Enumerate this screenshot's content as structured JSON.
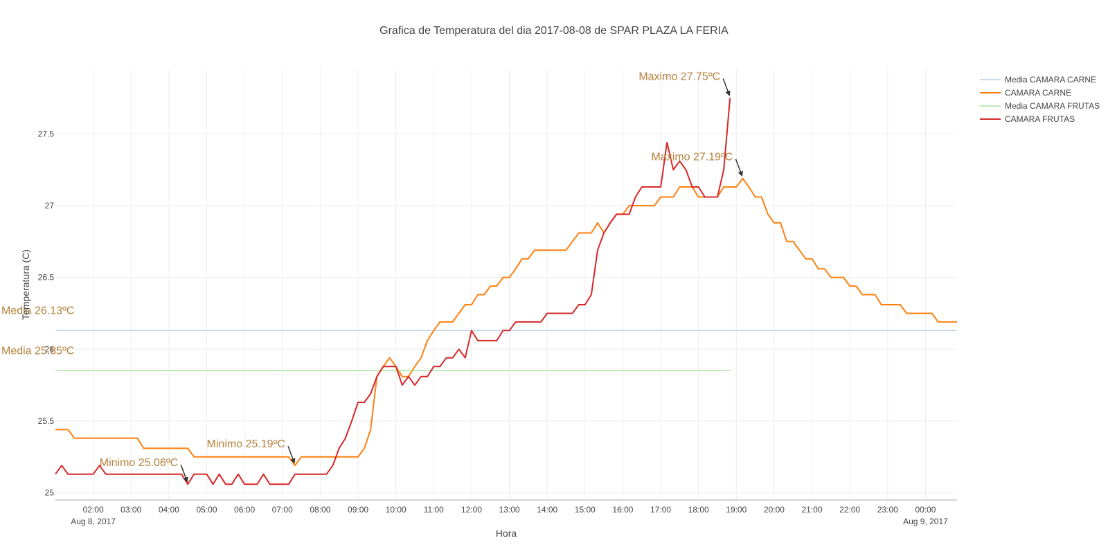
{
  "chart_data": {
    "type": "line",
    "title": "Grafica de Temperatura del dia 2017-08-08 de SPAR PLAZA LA FERIA",
    "xlabel": "Hora",
    "ylabel": "Temperatura (C)",
    "x_range": [
      "01:00",
      "00:50 (next day)"
    ],
    "ylim": [
      24.95,
      27.95
    ],
    "y_ticks": [
      25,
      25.5,
      26,
      26.5,
      27,
      27.5
    ],
    "y_tick_labels": [
      "25",
      "25.5",
      "26",
      "26.5",
      "27",
      "27.5"
    ],
    "x_ticks": [
      "02:00",
      "03:00",
      "04:00",
      "05:00",
      "06:00",
      "07:00",
      "08:00",
      "09:00",
      "10:00",
      "11:00",
      "12:00",
      "13:00",
      "14:00",
      "15:00",
      "16:00",
      "17:00",
      "18:00",
      "19:00",
      "20:00",
      "21:00",
      "22:00",
      "23:00",
      "00:00"
    ],
    "x_date_labels": [
      {
        "at": "02:00",
        "text": "Aug 8, 2017"
      },
      {
        "at": "00:00",
        "text": "Aug 9, 2017"
      }
    ],
    "grid": true,
    "legend_position": "top-right",
    "series": [
      {
        "name": "Media CAMARA CARNE",
        "color": "#aec7e8",
        "style": "thin",
        "points": [
          [
            "01:00",
            26.13
          ],
          [
            "00:50",
            26.13
          ]
        ]
      },
      {
        "name": "CAMARA CARNE",
        "color": "#ff7f0e",
        "style": "thick",
        "points": [
          [
            "01:00",
            25.44
          ],
          [
            "01:20",
            25.44
          ],
          [
            "01:30",
            25.38
          ],
          [
            "03:10",
            25.38
          ],
          [
            "03:20",
            25.31
          ],
          [
            "04:30",
            25.31
          ],
          [
            "04:40",
            25.25
          ],
          [
            "07:10",
            25.25
          ],
          [
            "07:20",
            25.19
          ],
          [
            "07:30",
            25.25
          ],
          [
            "09:00",
            25.25
          ],
          [
            "09:10",
            25.31
          ],
          [
            "09:20",
            25.44
          ],
          [
            "09:30",
            25.81
          ],
          [
            "09:40",
            25.88
          ],
          [
            "09:50",
            25.94
          ],
          [
            "10:00",
            25.88
          ],
          [
            "10:10",
            25.81
          ],
          [
            "10:20",
            25.81
          ],
          [
            "10:30",
            25.88
          ],
          [
            "10:40",
            25.94
          ],
          [
            "10:50",
            26.06
          ],
          [
            "11:00",
            26.13
          ],
          [
            "11:10",
            26.19
          ],
          [
            "11:30",
            26.19
          ],
          [
            "11:40",
            26.25
          ],
          [
            "11:50",
            26.31
          ],
          [
            "12:00",
            26.31
          ],
          [
            "12:10",
            26.38
          ],
          [
            "12:20",
            26.38
          ],
          [
            "12:30",
            26.44
          ],
          [
            "12:40",
            26.44
          ],
          [
            "12:50",
            26.5
          ],
          [
            "13:00",
            26.5
          ],
          [
            "13:10",
            26.56
          ],
          [
            "13:20",
            26.63
          ],
          [
            "13:30",
            26.63
          ],
          [
            "13:40",
            26.69
          ],
          [
            "14:30",
            26.69
          ],
          [
            "14:40",
            26.75
          ],
          [
            "14:50",
            26.81
          ],
          [
            "15:10",
            26.81
          ],
          [
            "15:20",
            26.88
          ],
          [
            "15:30",
            26.81
          ],
          [
            "15:40",
            26.88
          ],
          [
            "15:50",
            26.94
          ],
          [
            "16:00",
            26.94
          ],
          [
            "16:10",
            27.0
          ],
          [
            "16:50",
            27.0
          ],
          [
            "17:00",
            27.06
          ],
          [
            "17:20",
            27.06
          ],
          [
            "17:30",
            27.13
          ],
          [
            "17:50",
            27.13
          ],
          [
            "18:00",
            27.06
          ],
          [
            "18:30",
            27.06
          ],
          [
            "18:40",
            27.13
          ],
          [
            "19:00",
            27.13
          ],
          [
            "19:10",
            27.19
          ],
          [
            "19:20",
            27.13
          ],
          [
            "19:30",
            27.06
          ],
          [
            "19:40",
            27.06
          ],
          [
            "19:50",
            26.94
          ],
          [
            "20:00",
            26.88
          ],
          [
            "20:10",
            26.88
          ],
          [
            "20:20",
            26.75
          ],
          [
            "20:30",
            26.75
          ],
          [
            "20:40",
            26.69
          ],
          [
            "20:50",
            26.63
          ],
          [
            "21:00",
            26.63
          ],
          [
            "21:10",
            26.56
          ],
          [
            "21:20",
            26.56
          ],
          [
            "21:30",
            26.5
          ],
          [
            "21:50",
            26.5
          ],
          [
            "22:00",
            26.44
          ],
          [
            "22:10",
            26.44
          ],
          [
            "22:20",
            26.38
          ],
          [
            "22:40",
            26.38
          ],
          [
            "22:50",
            26.31
          ],
          [
            "23:20",
            26.31
          ],
          [
            "23:30",
            26.25
          ],
          [
            "00:10",
            26.25
          ],
          [
            "00:20",
            26.19
          ],
          [
            "00:50",
            26.19
          ]
        ]
      },
      {
        "name": "Media CAMARA FRUTAS",
        "color": "#98df8a",
        "style": "thin",
        "points": [
          [
            "01:00",
            25.85
          ],
          [
            "18:50",
            25.85
          ]
        ]
      },
      {
        "name": "CAMARA FRUTAS",
        "color": "#d62728",
        "style": "thick",
        "points": [
          [
            "01:00",
            25.13
          ],
          [
            "01:10",
            25.19
          ],
          [
            "01:20",
            25.13
          ],
          [
            "02:00",
            25.13
          ],
          [
            "02:10",
            25.19
          ],
          [
            "02:20",
            25.13
          ],
          [
            "04:20",
            25.13
          ],
          [
            "04:30",
            25.06
          ],
          [
            "04:40",
            25.13
          ],
          [
            "05:00",
            25.13
          ],
          [
            "05:10",
            25.06
          ],
          [
            "05:20",
            25.13
          ],
          [
            "05:30",
            25.06
          ],
          [
            "05:40",
            25.06
          ],
          [
            "05:50",
            25.13
          ],
          [
            "06:00",
            25.06
          ],
          [
            "06:20",
            25.06
          ],
          [
            "06:30",
            25.13
          ],
          [
            "06:40",
            25.06
          ],
          [
            "07:10",
            25.06
          ],
          [
            "07:20",
            25.13
          ],
          [
            "08:10",
            25.13
          ],
          [
            "08:20",
            25.19
          ],
          [
            "08:30",
            25.31
          ],
          [
            "08:40",
            25.38
          ],
          [
            "08:50",
            25.5
          ],
          [
            "09:00",
            25.63
          ],
          [
            "09:10",
            25.63
          ],
          [
            "09:20",
            25.69
          ],
          [
            "09:30",
            25.81
          ],
          [
            "09:40",
            25.88
          ],
          [
            "10:00",
            25.88
          ],
          [
            "10:10",
            25.75
          ],
          [
            "10:20",
            25.81
          ],
          [
            "10:30",
            25.75
          ],
          [
            "10:40",
            25.81
          ],
          [
            "10:50",
            25.81
          ],
          [
            "11:00",
            25.88
          ],
          [
            "11:10",
            25.88
          ],
          [
            "11:20",
            25.94
          ],
          [
            "11:30",
            25.94
          ],
          [
            "11:40",
            26.0
          ],
          [
            "11:50",
            25.94
          ],
          [
            "12:00",
            26.13
          ],
          [
            "12:10",
            26.06
          ],
          [
            "12:40",
            26.06
          ],
          [
            "12:50",
            26.13
          ],
          [
            "13:00",
            26.13
          ],
          [
            "13:10",
            26.19
          ],
          [
            "13:50",
            26.19
          ],
          [
            "14:00",
            26.25
          ],
          [
            "14:40",
            26.25
          ],
          [
            "14:50",
            26.31
          ],
          [
            "15:00",
            26.31
          ],
          [
            "15:10",
            26.38
          ],
          [
            "15:20",
            26.69
          ],
          [
            "15:30",
            26.81
          ],
          [
            "15:40",
            26.88
          ],
          [
            "15:50",
            26.94
          ],
          [
            "16:10",
            26.94
          ],
          [
            "16:20",
            27.06
          ],
          [
            "16:30",
            27.13
          ],
          [
            "17:00",
            27.13
          ],
          [
            "17:10",
            27.44
          ],
          [
            "17:20",
            27.25
          ],
          [
            "17:30",
            27.31
          ],
          [
            "17:40",
            27.25
          ],
          [
            "17:50",
            27.13
          ],
          [
            "18:00",
            27.13
          ],
          [
            "18:10",
            27.06
          ],
          [
            "18:30",
            27.06
          ],
          [
            "18:40",
            27.25
          ],
          [
            "18:50",
            27.75
          ]
        ]
      }
    ],
    "annotations": [
      {
        "text": "Maximo 27.75ºC",
        "x": "18:50",
        "y": 27.75
      },
      {
        "text": "Maximo 27.19ºC",
        "x": "19:10",
        "y": 27.19
      },
      {
        "text": "Minimo 25.19ºC",
        "x": "07:20",
        "y": 25.19
      },
      {
        "text": "Minimo 25.06ºC",
        "x": "04:30",
        "y": 25.06
      },
      {
        "text": "Media 26.13ºC",
        "y": 26.13
      },
      {
        "text": "Media 25.85ºC",
        "y": 25.85
      }
    ]
  }
}
